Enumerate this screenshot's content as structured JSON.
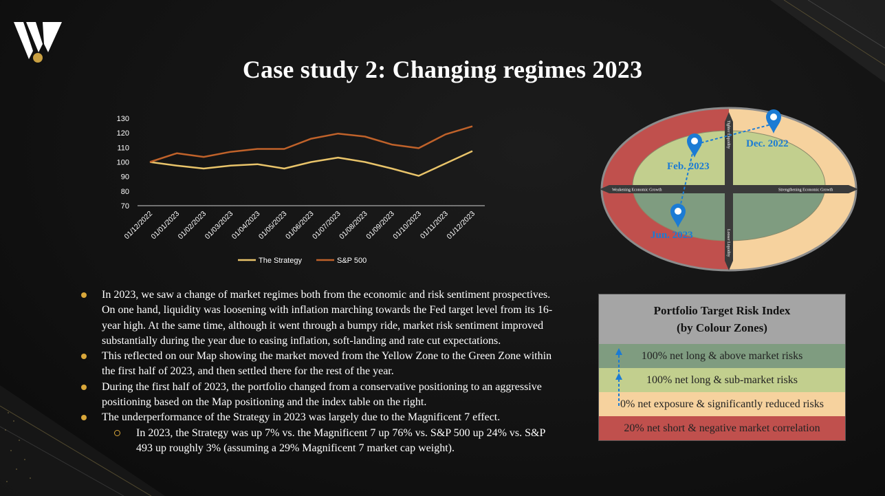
{
  "page": {
    "title": "Case study 2: Changing regimes 2023"
  },
  "chart_data": {
    "type": "line",
    "categories": [
      "01/12/2022",
      "01/01/2023",
      "01/02/2023",
      "01/03/2023",
      "01/04/2023",
      "01/05/2023",
      "01/06/2023",
      "01/07/2023",
      "01/08/2023",
      "01/09/2023",
      "01/10/2023",
      "01/11/2023",
      "01/12/2023"
    ],
    "series": [
      {
        "name": "The Strategy",
        "color": "#e9c46a",
        "values": [
          100,
          97.5,
          95.5,
          97.5,
          98.5,
          95.5,
          100,
          103,
          100,
          95.5,
          90.5,
          99,
          107.5
        ]
      },
      {
        "name": "S&P 500",
        "color": "#c0622a",
        "values": [
          100,
          106,
          103.5,
          107,
          109,
          109,
          116,
          119.5,
          117.5,
          112,
          109.5,
          119,
          124.5
        ]
      }
    ],
    "yticks": [
      70,
      80,
      90,
      100,
      110,
      120,
      130
    ],
    "ylim": [
      70,
      130
    ],
    "legend_position": "bottom",
    "grid": false
  },
  "map": {
    "axis_top": "Tighter Liquidity",
    "axis_bottom": "Looser Liquidity",
    "axis_left": "Weakening Economic Growth",
    "axis_right": "Strengthening Economic Growth",
    "points": [
      {
        "label": "Dec. 2022"
      },
      {
        "label": "Feb. 2023"
      },
      {
        "label": "Jun. 2023"
      }
    ],
    "colors": {
      "red": "#c0504d",
      "yellow": "#f6d29e",
      "green": "#c2cf8e",
      "dark_green": "#7f9c80",
      "marker": "#1b7bd4"
    }
  },
  "bullets": [
    {
      "text": "In 2023, we saw a change of market regimes both from the economic and risk sentiment prospectives.  On one hand, liquidity was loosening with inflation marching towards the Fed target level from its 16-year high.  At the same time, although it went through a bumpy ride, market risk sentiment improved substantially during the year due to easing inflation, soft-landing and rate cut expectations."
    },
    {
      "text": "This reflected on our Map showing the market moved from the Yellow Zone to the Green Zone within the first half of 2023, and then settled there for the rest of the year."
    },
    {
      "text": "During the first half of 2023, the portfolio changed from a conservative positioning to an aggressive positioning based on the Map positioning and the index table on the right."
    },
    {
      "text": "The underperformance of the Strategy in 2023 was largely due to the Magnificent 7 effect."
    },
    {
      "text": "In 2023, the Strategy was up 7% vs. the Magnificent 7 up 76% vs. S&P 500 up 24% vs. S&P 493 up roughly 3% (assuming a 29% Magnificent 7 market cap weight).",
      "sub": true
    }
  ],
  "risk_table": {
    "title_line1": "Portfolio Target Risk Index",
    "title_line2": "(by Colour Zones)",
    "rows": [
      {
        "label": "100% net long & above market risks",
        "color": "#7f9c80"
      },
      {
        "label": "100% net long & sub-market risks",
        "color": "#c2cf8e"
      },
      {
        "label": "0% net exposure & significantly reduced risks",
        "color": "#f6d29e"
      },
      {
        "label": "20% net short & negative market correlation",
        "color": "#c0504d"
      }
    ]
  }
}
